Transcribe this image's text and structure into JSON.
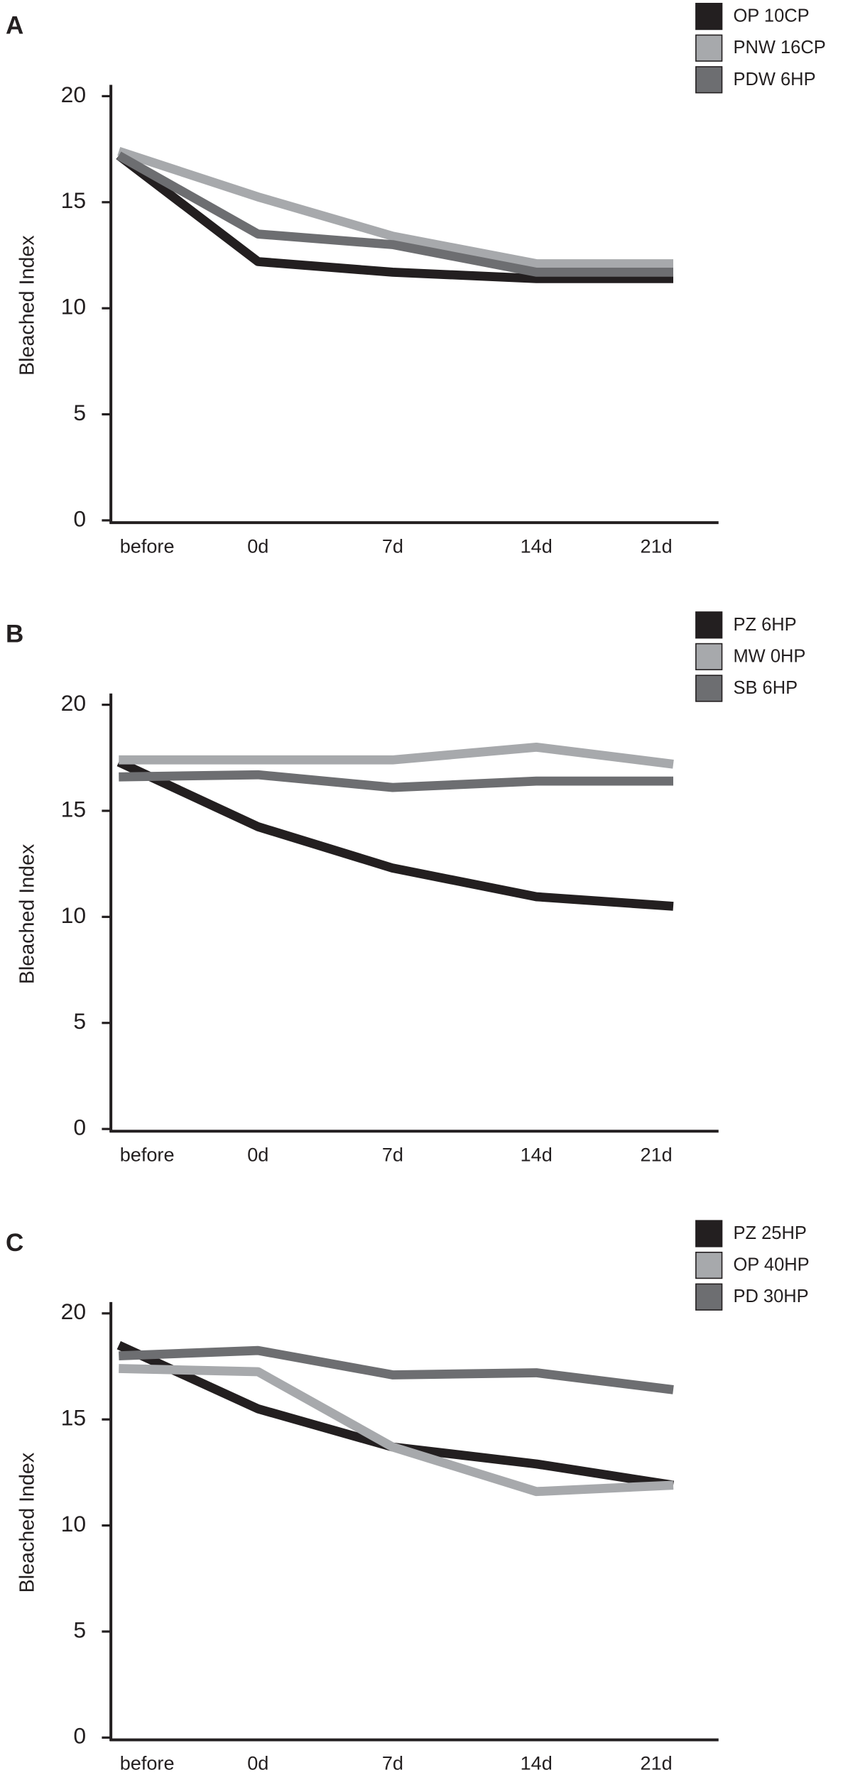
{
  "chart_data": [
    {
      "type": "line",
      "panel": "A",
      "y_label": "Bleached Index",
      "categories": [
        "before",
        "0d",
        "7d",
        "14d",
        "21d"
      ],
      "ylim": [
        0,
        20
      ],
      "yticks": [
        0,
        5,
        10,
        15,
        20
      ],
      "series": [
        {
          "name": "OP 10CP",
          "color": "#231f20",
          "values": [
            17.2,
            12.2,
            11.7,
            11.4,
            11.4
          ]
        },
        {
          "name": "PNW 16CP",
          "color": "#a7a9ac",
          "values": [
            17.4,
            15.25,
            13.4,
            12.1,
            12.1
          ]
        },
        {
          "name": "PDW 6HP",
          "color": "#6d6e71",
          "values": [
            17.2,
            13.5,
            13.0,
            11.7,
            11.7
          ]
        }
      ]
    },
    {
      "type": "line",
      "panel": "B",
      "y_label": "Bleached Index",
      "categories": [
        "before",
        "0d",
        "7d",
        "14d",
        "21d"
      ],
      "ylim": [
        0,
        20
      ],
      "yticks": [
        0,
        5,
        10,
        15,
        20
      ],
      "series": [
        {
          "name": "PZ 6HP",
          "color": "#231f20",
          "values": [
            17.3,
            14.25,
            12.3,
            10.95,
            10.5
          ]
        },
        {
          "name": "MW 0HP",
          "color": "#a7a9ac",
          "values": [
            17.4,
            17.4,
            17.4,
            18.0,
            17.2
          ]
        },
        {
          "name": "SB 6HP",
          "color": "#6d6e71",
          "values": [
            16.6,
            16.7,
            16.1,
            16.4,
            16.4
          ]
        }
      ]
    },
    {
      "type": "line",
      "panel": "C",
      "y_label": "Bleached Index",
      "categories": [
        "before",
        "0d",
        "7d",
        "14d",
        "21d"
      ],
      "ylim": [
        0,
        20
      ],
      "yticks": [
        0,
        5,
        10,
        15,
        20
      ],
      "series": [
        {
          "name": "PZ 25HP",
          "color": "#231f20",
          "values": [
            18.5,
            15.5,
            13.7,
            12.9,
            11.9
          ]
        },
        {
          "name": "OP 40HP",
          "color": "#a7a9ac",
          "values": [
            17.4,
            17.25,
            13.7,
            11.6,
            11.9
          ]
        },
        {
          "name": "PD 30HP",
          "color": "#6d6e71",
          "values": [
            18.0,
            18.25,
            17.1,
            17.2,
            16.4
          ]
        }
      ]
    }
  ]
}
